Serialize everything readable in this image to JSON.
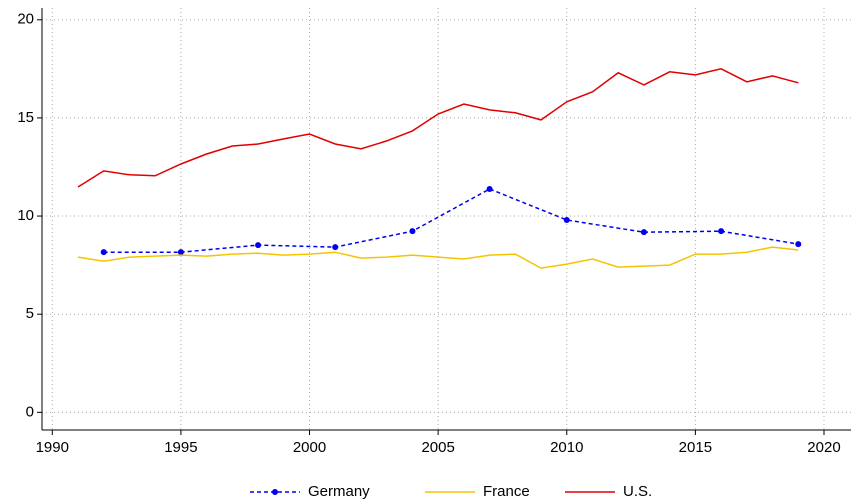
{
  "chart_data": {
    "type": "line",
    "xlim": [
      1989.6,
      2021.05
    ],
    "xticks": [
      1990,
      1995,
      2000,
      2005,
      2010,
      2015,
      2020
    ],
    "ylim": [
      -0.9,
      20.6
    ],
    "yticks": [
      0,
      5,
      10,
      15,
      20
    ],
    "grid": true,
    "series": [
      {
        "name": "Germany",
        "color": "#0000ee",
        "style": "dashed",
        "marker": true,
        "x": [
          1992,
          1995,
          1998,
          2001,
          2004,
          2007,
          2010,
          2013,
          2016,
          2019
        ],
        "values": [
          8.16,
          8.16,
          8.52,
          8.42,
          9.23,
          11.38,
          9.8,
          9.18,
          9.23,
          8.57
        ]
      },
      {
        "name": "France",
        "color": "#f5c400",
        "style": "solid",
        "marker": false,
        "x": [
          1991,
          1992,
          1993,
          1994,
          1995,
          1996,
          1997,
          1998,
          1999,
          2000,
          2001,
          2002,
          2003,
          2004,
          2005,
          2006,
          2007,
          2008,
          2009,
          2010,
          2011,
          2012,
          2013,
          2014,
          2015,
          2016,
          2017,
          2018,
          2019
        ],
        "values": [
          7.91,
          7.7,
          7.91,
          7.96,
          8.01,
          7.96,
          8.06,
          8.11,
          8.01,
          8.06,
          8.16,
          7.86,
          7.91,
          8.01,
          7.91,
          7.81,
          8.01,
          8.06,
          7.35,
          7.55,
          7.81,
          7.4,
          7.45,
          7.5,
          8.06,
          8.06,
          8.16,
          8.42,
          8.27
        ]
      },
      {
        "name": "U.S.",
        "color": "#e00000",
        "style": "solid",
        "marker": false,
        "x": [
          1991,
          1992,
          1993,
          1994,
          1995,
          1996,
          1997,
          1998,
          1999,
          2000,
          2001,
          2002,
          2003,
          2004,
          2005,
          2006,
          2007,
          2008,
          2009,
          2010,
          2011,
          2012,
          2013,
          2014,
          2015,
          2016,
          2017,
          2018,
          2019
        ],
        "values": [
          11.48,
          12.3,
          12.1,
          12.05,
          12.65,
          13.16,
          13.57,
          13.67,
          13.93,
          14.18,
          13.67,
          13.42,
          13.83,
          14.34,
          15.2,
          15.71,
          15.41,
          15.26,
          14.9,
          15.82,
          16.33,
          17.3,
          16.68,
          17.35,
          17.19,
          17.5,
          16.84,
          17.14,
          16.79
        ]
      }
    ]
  }
}
